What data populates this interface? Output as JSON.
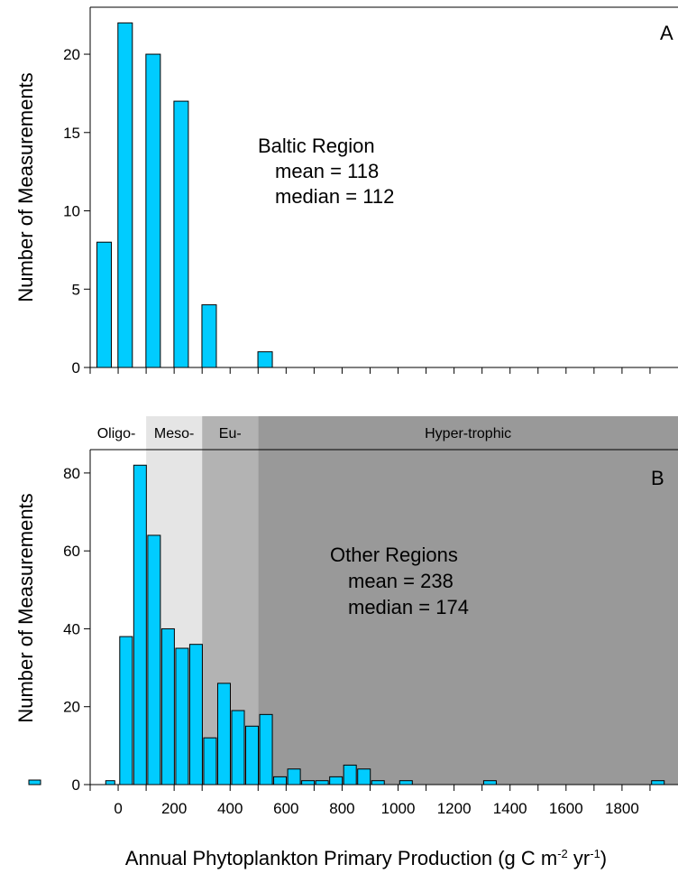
{
  "chart_data": [
    {
      "type": "bar",
      "panel_label": "A",
      "ylabel": "Number of Measurements",
      "annotation": {
        "lines": [
          "Baltic Region",
          "mean = 118",
          "median = 112"
        ]
      },
      "x_range": [
        -100,
        2000
      ],
      "ylim": [
        0,
        23
      ],
      "y_ticks": [
        0,
        5,
        10,
        15,
        20
      ],
      "bar_color": "#00ccff",
      "bars": [
        {
          "x": -50,
          "y": 8
        },
        {
          "x": 25,
          "y": 22
        },
        {
          "x": 125,
          "y": 20
        },
        {
          "x": 225,
          "y": 17
        },
        {
          "x": 325,
          "y": 4
        },
        {
          "x": 525,
          "y": 1
        }
      ]
    },
    {
      "type": "bar",
      "panel_label": "B",
      "ylabel": "Number of Measurements",
      "xlabel": "Annual Phytoplankton Primary Production (g C m",
      "xlabel_sup1": "-2",
      "xlabel_mid": " yr",
      "xlabel_sup2": "-1",
      "xlabel_end": ")",
      "annotation": {
        "lines": [
          "Other Regions",
          "mean = 238",
          "median = 174"
        ]
      },
      "x_range": [
        -100,
        2000
      ],
      "ylim": [
        0,
        86
      ],
      "y_ticks": [
        0,
        20,
        40,
        60,
        80
      ],
      "x_ticks": [
        0,
        200,
        400,
        600,
        800,
        1000,
        1200,
        1400,
        1600,
        1800
      ],
      "bar_color": "#00ccff",
      "zones": [
        {
          "label": "Oligo-",
          "from": -100,
          "to": 100,
          "color": "#ffffff"
        },
        {
          "label": "Meso-",
          "from": 100,
          "to": 300,
          "color": "#e5e5e5"
        },
        {
          "label": "Eu-",
          "from": 300,
          "to": 500,
          "color": "#b3b3b3"
        },
        {
          "label": "Hyper-trophic",
          "from": 500,
          "to": 2000,
          "color": "#999999"
        }
      ],
      "bars": [
        {
          "x": -25,
          "y": 1
        },
        {
          "x": 25,
          "y": 38
        },
        {
          "x": 75,
          "y": 82
        },
        {
          "x": 125,
          "y": 64
        },
        {
          "x": 175,
          "y": 40
        },
        {
          "x": 225,
          "y": 35
        },
        {
          "x": 275,
          "y": 36
        },
        {
          "x": 325,
          "y": 12
        },
        {
          "x": 375,
          "y": 26
        },
        {
          "x": 425,
          "y": 19
        },
        {
          "x": 475,
          "y": 15
        },
        {
          "x": 525,
          "y": 18
        },
        {
          "x": 575,
          "y": 2
        },
        {
          "x": 625,
          "y": 4
        },
        {
          "x": 675,
          "y": 1
        },
        {
          "x": 725,
          "y": 1
        },
        {
          "x": 775,
          "y": 2
        },
        {
          "x": 825,
          "y": 5
        },
        {
          "x": 875,
          "y": 4
        },
        {
          "x": 925,
          "y": 1
        },
        {
          "x": 1025,
          "y": 1
        },
        {
          "x": 1325,
          "y": 1
        },
        {
          "x": 1925,
          "y": 1
        }
      ],
      "outlier_marker": {
        "y": 0
      }
    }
  ]
}
